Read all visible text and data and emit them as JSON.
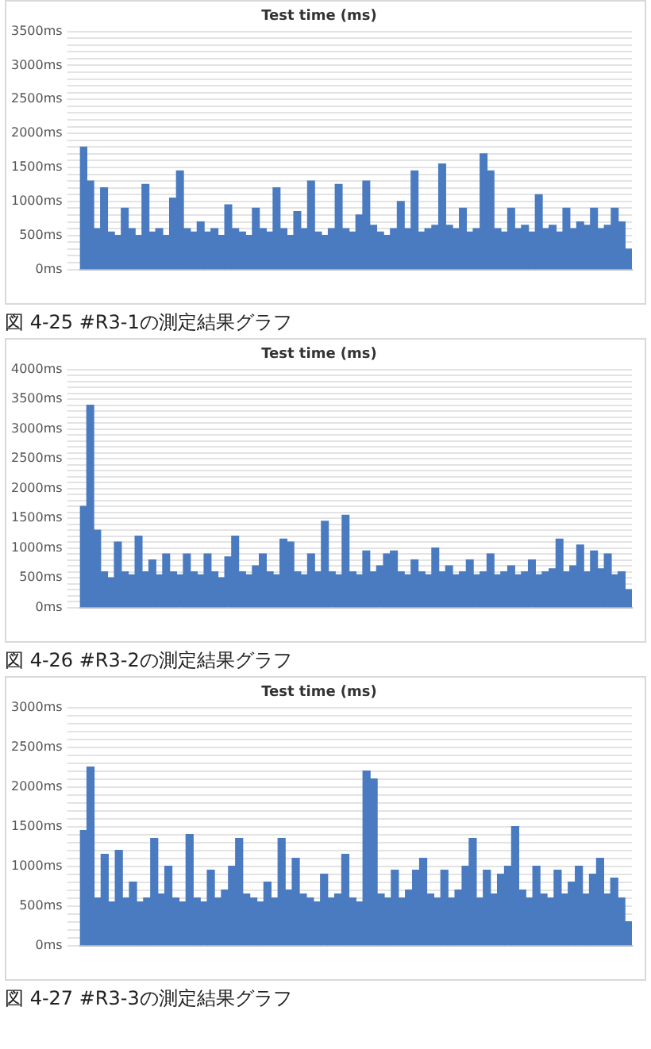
{
  "chart_data": [
    {
      "type": "bar",
      "title": "Test time (ms)",
      "annotations": [
        "図 4-25 #R3-1の測定結果グラフ"
      ],
      "grid": "y",
      "legend": false,
      "categories": [
        null,
        null,
        null,
        null,
        null,
        null,
        null,
        null,
        null,
        null,
        null,
        null,
        null,
        null,
        null,
        null,
        null,
        null,
        null,
        null,
        null,
        null,
        null,
        null,
        null,
        null,
        null,
        null,
        null,
        null,
        null,
        null,
        null,
        null,
        null,
        null,
        null,
        null,
        null,
        null,
        null,
        null,
        null,
        null,
        null,
        null,
        null,
        null,
        null,
        null,
        null,
        null,
        null,
        null,
        null,
        null,
        null,
        null,
        null,
        null,
        null,
        null,
        null,
        null,
        null,
        null,
        null,
        null,
        null,
        null,
        null,
        null,
        null,
        null,
        null,
        null,
        null,
        null,
        null,
        null
      ],
      "series": [
        {
          "color": "#4a7bc0",
          "values": [
            1800,
            1300,
            600,
            1200,
            550,
            500,
            900,
            600,
            500,
            1250,
            550,
            600,
            500,
            1050,
            1450,
            600,
            550,
            700,
            550,
            600,
            500,
            950,
            600,
            550,
            500,
            900,
            600,
            550,
            1200,
            600,
            500,
            850,
            600,
            1300,
            550,
            500,
            600,
            1250,
            600,
            550,
            800,
            1300,
            650,
            550,
            500,
            600,
            1000,
            600,
            1450,
            550,
            600,
            650,
            1550,
            650,
            600,
            900,
            550,
            600,
            1700,
            1450,
            600,
            550,
            900,
            600,
            650,
            550,
            1100,
            600,
            650,
            550,
            900,
            600,
            700,
            650,
            900,
            600,
            650,
            900,
            700,
            300
          ]
        }
      ],
      "ylim": [
        0,
        3500
      ],
      "yticks": [
        {
          "value": 0,
          "label": "0ms"
        },
        {
          "value": 100,
          "label": null
        },
        {
          "value": 200,
          "label": null
        },
        {
          "value": 300,
          "label": null
        },
        {
          "value": 400,
          "label": null
        },
        {
          "value": 500,
          "label": "500ms"
        },
        {
          "value": 600,
          "label": null
        },
        {
          "value": 700,
          "label": null
        },
        {
          "value": 800,
          "label": null
        },
        {
          "value": 900,
          "label": null
        },
        {
          "value": 1000,
          "label": "1000ms"
        },
        {
          "value": 1100,
          "label": null
        },
        {
          "value": 1200,
          "label": null
        },
        {
          "value": 1300,
          "label": null
        },
        {
          "value": 1400,
          "label": null
        },
        {
          "value": 1500,
          "label": "1500ms"
        },
        {
          "value": 1600,
          "label": null
        },
        {
          "value": 1700,
          "label": null
        },
        {
          "value": 1800,
          "label": null
        },
        {
          "value": 1900,
          "label": null
        },
        {
          "value": 2000,
          "label": "2000ms"
        },
        {
          "value": 2100,
          "label": null
        },
        {
          "value": 2200,
          "label": null
        },
        {
          "value": 2300,
          "label": null
        },
        {
          "value": 2400,
          "label": null
        },
        {
          "value": 2500,
          "label": "2500ms"
        },
        {
          "value": 2600,
          "label": null
        },
        {
          "value": 2700,
          "label": null
        },
        {
          "value": 2800,
          "label": null
        },
        {
          "value": 2900,
          "label": null
        },
        {
          "value": 3000,
          "label": "3000ms"
        },
        {
          "value": 3100,
          "label": null
        },
        {
          "value": 3200,
          "label": null
        },
        {
          "value": 3300,
          "label": null
        },
        {
          "value": 3400,
          "label": null
        },
        {
          "value": 3500,
          "label": "3500ms"
        }
      ]
    },
    {
      "type": "bar",
      "title": "Test time (ms)",
      "annotations": [
        "図 4-26 #R3-2の測定結果グラフ"
      ],
      "grid": "y",
      "legend": false,
      "categories": [
        null,
        null,
        null,
        null,
        null,
        null,
        null,
        null,
        null,
        null,
        null,
        null,
        null,
        null,
        null,
        null,
        null,
        null,
        null,
        null,
        null,
        null,
        null,
        null,
        null,
        null,
        null,
        null,
        null,
        null,
        null,
        null,
        null,
        null,
        null,
        null,
        null,
        null,
        null,
        null,
        null,
        null,
        null,
        null,
        null,
        null,
        null,
        null,
        null,
        null,
        null,
        null,
        null,
        null,
        null,
        null,
        null,
        null,
        null,
        null,
        null,
        null,
        null,
        null,
        null,
        null,
        null,
        null,
        null,
        null,
        null,
        null,
        null,
        null,
        null,
        null,
        null,
        null,
        null,
        null
      ],
      "series": [
        {
          "color": "#4a7bc0",
          "values": [
            1700,
            3400,
            1300,
            600,
            500,
            1100,
            600,
            550,
            1200,
            600,
            800,
            550,
            900,
            600,
            550,
            900,
            600,
            550,
            900,
            600,
            500,
            850,
            1200,
            600,
            550,
            700,
            900,
            600,
            550,
            1150,
            1100,
            600,
            550,
            900,
            600,
            1450,
            600,
            550,
            1550,
            600,
            550,
            950,
            600,
            700,
            900,
            950,
            600,
            550,
            800,
            600,
            550,
            1000,
            600,
            700,
            550,
            600,
            800,
            550,
            600,
            900,
            550,
            600,
            700,
            550,
            600,
            800,
            550,
            600,
            650,
            1150,
            600,
            700,
            1050,
            600,
            950,
            650,
            900,
            550,
            600,
            300
          ]
        }
      ],
      "ylim": [
        0,
        4000
      ],
      "yticks": [
        {
          "value": 0,
          "label": "0ms"
        },
        {
          "value": 100,
          "label": null
        },
        {
          "value": 200,
          "label": null
        },
        {
          "value": 300,
          "label": null
        },
        {
          "value": 400,
          "label": null
        },
        {
          "value": 500,
          "label": "500ms"
        },
        {
          "value": 600,
          "label": null
        },
        {
          "value": 700,
          "label": null
        },
        {
          "value": 800,
          "label": null
        },
        {
          "value": 900,
          "label": null
        },
        {
          "value": 1000,
          "label": "1000ms"
        },
        {
          "value": 1100,
          "label": null
        },
        {
          "value": 1200,
          "label": null
        },
        {
          "value": 1300,
          "label": null
        },
        {
          "value": 1400,
          "label": null
        },
        {
          "value": 1500,
          "label": "1500ms"
        },
        {
          "value": 1600,
          "label": null
        },
        {
          "value": 1700,
          "label": null
        },
        {
          "value": 1800,
          "label": null
        },
        {
          "value": 1900,
          "label": null
        },
        {
          "value": 2000,
          "label": "2000ms"
        },
        {
          "value": 2100,
          "label": null
        },
        {
          "value": 2200,
          "label": null
        },
        {
          "value": 2300,
          "label": null
        },
        {
          "value": 2400,
          "label": null
        },
        {
          "value": 2500,
          "label": "2500ms"
        },
        {
          "value": 2600,
          "label": null
        },
        {
          "value": 2700,
          "label": null
        },
        {
          "value": 2800,
          "label": null
        },
        {
          "value": 2900,
          "label": null
        },
        {
          "value": 3000,
          "label": "3000ms"
        },
        {
          "value": 3100,
          "label": null
        },
        {
          "value": 3200,
          "label": null
        },
        {
          "value": 3300,
          "label": null
        },
        {
          "value": 3400,
          "label": null
        },
        {
          "value": 3500,
          "label": "3500ms"
        },
        {
          "value": 3600,
          "label": null
        },
        {
          "value": 3700,
          "label": null
        },
        {
          "value": 3800,
          "label": null
        },
        {
          "value": 3900,
          "label": null
        },
        {
          "value": 4000,
          "label": "4000ms"
        }
      ]
    },
    {
      "type": "bar",
      "title": "Test time (ms)",
      "annotations": [
        "図 4-27 #R3-3の測定結果グラフ"
      ],
      "grid": "y",
      "legend": false,
      "categories": [
        null,
        null,
        null,
        null,
        null,
        null,
        null,
        null,
        null,
        null,
        null,
        null,
        null,
        null,
        null,
        null,
        null,
        null,
        null,
        null,
        null,
        null,
        null,
        null,
        null,
        null,
        null,
        null,
        null,
        null,
        null,
        null,
        null,
        null,
        null,
        null,
        null,
        null,
        null,
        null,
        null,
        null,
        null,
        null,
        null,
        null,
        null,
        null,
        null,
        null,
        null,
        null,
        null,
        null,
        null,
        null,
        null,
        null,
        null,
        null,
        null,
        null,
        null,
        null,
        null,
        null,
        null,
        null,
        null,
        null,
        null,
        null,
        null,
        null,
        null,
        null,
        null,
        null
      ],
      "series": [
        {
          "color": "#4a7bc0",
          "values": [
            1450,
            2250,
            600,
            1150,
            550,
            1200,
            600,
            800,
            550,
            600,
            1350,
            650,
            1000,
            600,
            550,
            1400,
            600,
            550,
            950,
            600,
            700,
            1000,
            1350,
            650,
            600,
            550,
            800,
            600,
            1350,
            700,
            1100,
            650,
            600,
            550,
            900,
            600,
            650,
            1150,
            600,
            550,
            2200,
            2100,
            650,
            600,
            950,
            600,
            700,
            950,
            1100,
            650,
            600,
            950,
            600,
            700,
            1000,
            1350,
            600,
            950,
            650,
            900,
            1000,
            1500,
            700,
            600,
            1000,
            650,
            600,
            950,
            650,
            800,
            1000,
            650,
            900,
            1100,
            650,
            850,
            600,
            300
          ]
        }
      ],
      "ylim": [
        0,
        3000
      ],
      "yticks": [
        {
          "value": 0,
          "label": "0ms"
        },
        {
          "value": 100,
          "label": null
        },
        {
          "value": 200,
          "label": null
        },
        {
          "value": 300,
          "label": null
        },
        {
          "value": 400,
          "label": null
        },
        {
          "value": 500,
          "label": "500ms"
        },
        {
          "value": 600,
          "label": null
        },
        {
          "value": 700,
          "label": null
        },
        {
          "value": 800,
          "label": null
        },
        {
          "value": 900,
          "label": null
        },
        {
          "value": 1000,
          "label": "1000ms"
        },
        {
          "value": 1100,
          "label": null
        },
        {
          "value": 1200,
          "label": null
        },
        {
          "value": 1300,
          "label": null
        },
        {
          "value": 1400,
          "label": null
        },
        {
          "value": 1500,
          "label": "1500ms"
        },
        {
          "value": 1600,
          "label": null
        },
        {
          "value": 1700,
          "label": null
        },
        {
          "value": 1800,
          "label": null
        },
        {
          "value": 1900,
          "label": null
        },
        {
          "value": 2000,
          "label": "2000ms"
        },
        {
          "value": 2100,
          "label": null
        },
        {
          "value": 2200,
          "label": null
        },
        {
          "value": 2300,
          "label": null
        },
        {
          "value": 2400,
          "label": null
        },
        {
          "value": 2500,
          "label": "2500ms"
        },
        {
          "value": 2600,
          "label": null
        },
        {
          "value": 2700,
          "label": null
        },
        {
          "value": 2800,
          "label": null
        },
        {
          "value": 2900,
          "label": null
        },
        {
          "value": 3000,
          "label": "3000ms"
        }
      ]
    }
  ]
}
